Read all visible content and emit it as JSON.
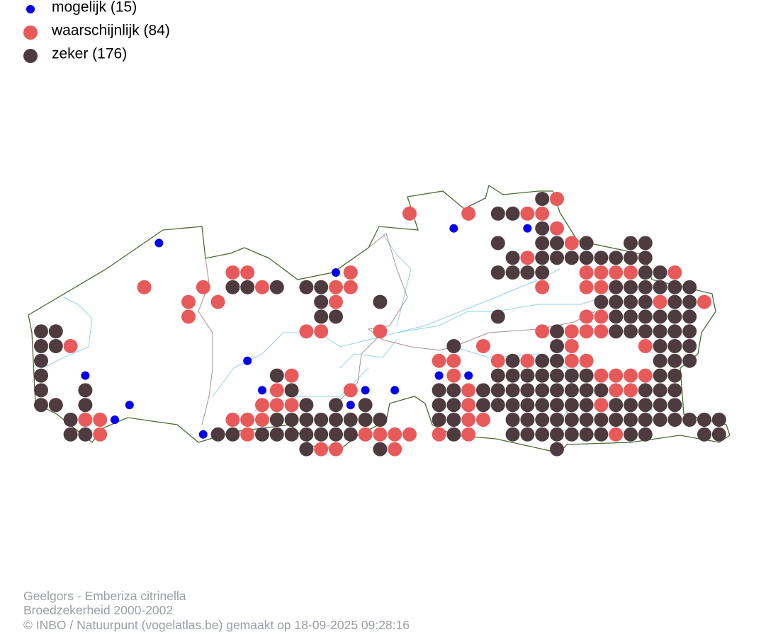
{
  "legend": {
    "items": [
      {
        "label": "mogelijk (15)"
      },
      {
        "label": "waarschijnlijk (84)"
      },
      {
        "label": "zeker (176)"
      }
    ]
  },
  "caption": {
    "lines": [
      "Geelgors - Emberiza citrinella",
      "Broedzekerheid 2000-2002",
      "© INBO / Natuurpunt (vogelatlas.be) gemaakt op 18-09-2025 09:28:16"
    ]
  }
}
